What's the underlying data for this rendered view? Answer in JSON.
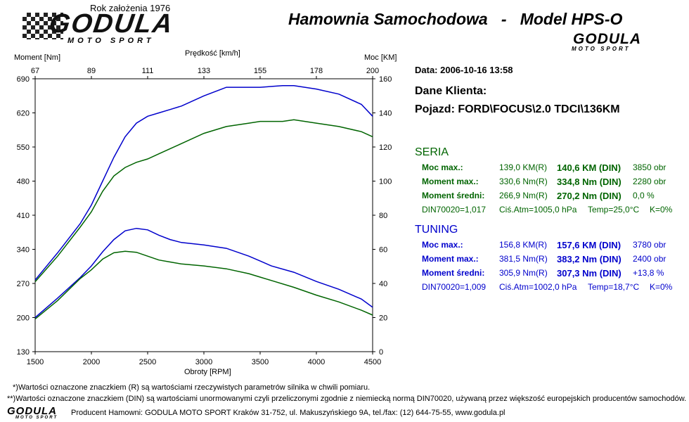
{
  "header": {
    "founded": "Rok założenia 1976",
    "logo_main": "GODULA",
    "logo_sub": "MOTO SPORT",
    "title": "Hamownia Samochodowa   -   Model HPS-O",
    "logo_small": "GODULA",
    "logo_small_sub": "MOTO SPORT"
  },
  "chart_data": {
    "type": "line",
    "xlabel": "Obroty [RPM]",
    "x_ticks": [
      "1500",
      "2000",
      "2500",
      "3000",
      "3500",
      "4000",
      "4500"
    ],
    "xlim": [
      1500,
      4500
    ],
    "y_left_label": "Moment [Nm]",
    "y_left_ticks": [
      "130",
      "200",
      "270",
      "340",
      "410",
      "480",
      "550",
      "620",
      "690"
    ],
    "y_left_lim": [
      130,
      690
    ],
    "y_right_label": "Moc [KM]",
    "y_right_ticks": [
      "0",
      "20",
      "40",
      "60",
      "80",
      "100",
      "120",
      "140",
      "160"
    ],
    "y_right_lim": [
      0,
      160
    ],
    "top_label": "Prędkość [km/h]",
    "top_ticks": [
      "67",
      "89",
      "111",
      "133",
      "155",
      "178",
      "200"
    ],
    "grid": false,
    "series": [
      {
        "color": "#0000cc",
        "axis": "left",
        "x": [
          1500,
          1700,
          1900,
          2000,
          2100,
          2200,
          2300,
          2400,
          2500,
          2600,
          2700,
          2800,
          3000,
          3200,
          3400,
          3500,
          3600,
          3800,
          4000,
          4200,
          4400,
          4500
        ],
        "y": [
          200,
          240,
          282,
          306,
          335,
          360,
          378,
          383,
          380,
          369,
          360,
          354,
          349,
          342,
          326,
          316,
          306,
          293,
          274,
          258,
          238,
          221
        ]
      },
      {
        "color": "#006400",
        "axis": "left",
        "x": [
          1500,
          1700,
          1900,
          2000,
          2100,
          2200,
          2300,
          2400,
          2500,
          2600,
          2700,
          2800,
          3000,
          3200,
          3400,
          3500,
          3600,
          3800,
          4000,
          4200,
          4400,
          4500
        ],
        "y": [
          197,
          235,
          280,
          298,
          320,
          333,
          336,
          334,
          326,
          318,
          314,
          310,
          306,
          300,
          290,
          283,
          276,
          262,
          246,
          232,
          215,
          205
        ]
      },
      {
        "color": "#0000cc",
        "axis": "right",
        "x": [
          1500,
          1700,
          1900,
          2000,
          2100,
          2200,
          2300,
          2400,
          2500,
          2600,
          2700,
          2800,
          3000,
          3200,
          3400,
          3500,
          3700,
          3800,
          4000,
          4200,
          4400,
          4500
        ],
        "y": [
          42,
          58,
          75,
          86,
          100,
          114,
          126,
          134,
          138,
          140,
          142,
          144,
          150,
          155,
          155,
          155,
          156,
          156,
          154,
          151,
          145,
          138
        ]
      },
      {
        "color": "#006400",
        "axis": "right",
        "x": [
          1500,
          1700,
          1900,
          2000,
          2100,
          2200,
          2300,
          2400,
          2500,
          2600,
          2700,
          2800,
          3000,
          3200,
          3400,
          3500,
          3700,
          3800,
          4000,
          4200,
          4400,
          4500
        ],
        "y": [
          41,
          56,
          73,
          82,
          94,
          103,
          108,
          111,
          113,
          116,
          119,
          122,
          128,
          132,
          134,
          135,
          135,
          136,
          134,
          132,
          129,
          126
        ]
      }
    ]
  },
  "info": {
    "date": "Data: 2006-10-16  13:58",
    "client": "Dane Klienta:",
    "vehicle": "Pojazd: FORD\\FOCUS\\2.0 TDCI\\136KM",
    "seria": {
      "heading": "SERIA",
      "rows": [
        {
          "label": "Moc max.:",
          "r": "139,0 KM(R)",
          "din": "140,6 KM (DIN)",
          "rpm": "3850 obr"
        },
        {
          "label": "Moment max.:",
          "r": "330,6 Nm(R)",
          "din": "334,8 Nm (DIN)",
          "rpm": "2280 obr"
        },
        {
          "label": "Moment średni:",
          "r": "266,9 Nm(R)",
          "din": "270,2 Nm (DIN)",
          "rpm": "0,0 %"
        }
      ],
      "din": "DIN70020=1,017",
      "atm": "Ciś.Atm=1005,0 hPa",
      "temp": "Temp=25,0°C",
      "k": "K=0%"
    },
    "tuning": {
      "heading": "TUNING",
      "rows": [
        {
          "label": "Moc max.:",
          "r": "156,8 KM(R)",
          "din": "157,6 KM (DIN)",
          "rpm": "3780 obr"
        },
        {
          "label": "Moment max.:",
          "r": "381,5 Nm(R)",
          "din": "383,2 Nm (DIN)",
          "rpm": "2400 obr"
        },
        {
          "label": "Moment średni:",
          "r": "305,9 Nm(R)",
          "din": "307,3 Nm (DIN)",
          "rpm": "+13,8 %"
        }
      ],
      "din": "DIN70020=1,009",
      "atm": "Ciś.Atm=1002,0 hPa",
      "temp": "Temp=18,7°C",
      "k": "K=0%"
    }
  },
  "footer": {
    "note1": "*)Wartości oznaczone znaczkiem (R) są wartościami rzeczywistych parametrów silnika w chwili pomiaru.",
    "note2": "**)Wartości oznaczone znaczkiem (DIN) są wartościami unormowanymi czyli przeliczonymi zgodnie z niemiecką normą DIN70020, używaną przez większość europejskich producentów samochodów.",
    "producer": "Producent Hamowni: GODULA MOTO SPORT Kraków 31-752, ul. Makuszyńskiego 9A, tel./fax: (12) 644-75-55, www.godula.pl",
    "logo": "GODULA",
    "logo_sub": "MOTO SPORT"
  }
}
